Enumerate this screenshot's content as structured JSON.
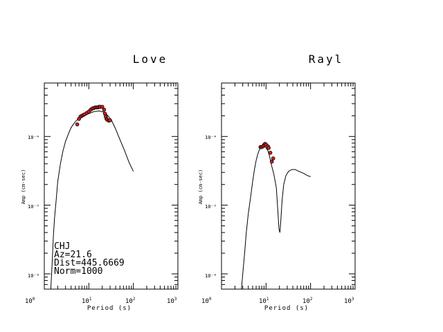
{
  "chart_data": [
    {
      "type": "line",
      "title": "Love",
      "xlabel": "Period (s)",
      "ylabel": "Amp (cm-sec)",
      "xscale": "log",
      "yscale": "log",
      "xlim": [
        1,
        1000
      ],
      "ylim": [
        6e-07,
        0.0006
      ],
      "x_ticks": [
        {
          "base": "10",
          "exp": "0"
        },
        {
          "base": "10",
          "exp": "1"
        },
        {
          "base": "10",
          "exp": "2"
        },
        {
          "base": "10",
          "exp": "3"
        }
      ],
      "y_ticks": [
        {
          "value": 1e-06,
          "label": "10⁻⁶"
        },
        {
          "value": 1e-05,
          "label": "10⁻⁵"
        },
        {
          "value": 0.0001,
          "label": "10⁻⁴"
        }
      ],
      "annotations": [
        "CHJ",
        "Az=21.6",
        "Dist=445.6669",
        "Norm=1000"
      ],
      "series": [
        {
          "kind": "line",
          "color": "#000000",
          "points": [
            [
              1.4,
              6e-07
            ],
            [
              1.5,
              1.4e-06
            ],
            [
              1.6,
              3.5e-06
            ],
            [
              1.7,
              6.5e-06
            ],
            [
              1.85,
              1.2e-05
            ],
            [
              2.0,
              2.2e-05
            ],
            [
              2.3,
              4e-05
            ],
            [
              2.6,
              6e-05
            ],
            [
              3.0,
              8.5e-05
            ],
            [
              3.5,
              0.00011
            ],
            [
              4.0,
              0.000135
            ],
            [
              5.0,
              0.000165
            ],
            [
              6.0,
              0.000185
            ],
            [
              8.0,
              0.0002
            ],
            [
              10.0,
              0.000215
            ],
            [
              13.0,
              0.00023
            ],
            [
              17.0,
              0.000235
            ],
            [
              22.0,
              0.000225
            ],
            [
              26.0,
              0.000205
            ],
            [
              32.0,
              0.000175
            ],
            [
              40.0,
              0.000128
            ],
            [
              50.0,
              9e-05
            ],
            [
              65.0,
              6e-05
            ],
            [
              80.0,
              4.2e-05
            ],
            [
              100.0,
              3.1e-05
            ]
          ]
        },
        {
          "kind": "scatter",
          "color": "#d02020",
          "points": [
            [
              5.5,
              0.00015
            ],
            [
              6.0,
              0.00018
            ],
            [
              6.5,
              0.000195
            ],
            [
              7.0,
              0.0002
            ],
            [
              7.5,
              0.000205
            ],
            [
              8.0,
              0.00021
            ],
            [
              9.0,
              0.00022
            ],
            [
              10.0,
              0.00023
            ],
            [
              11.0,
              0.000245
            ],
            [
              12.0,
              0.000255
            ],
            [
              13.0,
              0.00026
            ],
            [
              14.0,
              0.000265
            ],
            [
              15.0,
              0.000265
            ],
            [
              16.0,
              0.000265
            ],
            [
              17.0,
              0.00027
            ],
            [
              18.0,
              0.00027
            ],
            [
              20.0,
              0.00027
            ],
            [
              22.0,
              0.000245
            ],
            [
              23.0,
              0.000215
            ],
            [
              24.0,
              0.000195
            ],
            [
              25.0,
              0.00018
            ],
            [
              26.0,
              0.000175
            ],
            [
              28.0,
              0.00017
            ],
            [
              30.0,
              0.000172
            ]
          ]
        }
      ]
    },
    {
      "type": "line",
      "title": "Rayl",
      "xlabel": "Period (s)",
      "ylabel": "Amp (cm-sec)",
      "xscale": "log",
      "yscale": "log",
      "xlim": [
        1,
        1000
      ],
      "ylim": [
        6e-07,
        0.0006
      ],
      "x_ticks": [
        {
          "base": "10",
          "exp": "0"
        },
        {
          "base": "10",
          "exp": "1"
        },
        {
          "base": "10",
          "exp": "2"
        },
        {
          "base": "10",
          "exp": "3"
        }
      ],
      "y_ticks": [
        {
          "value": 1e-06,
          "label": "10⁻⁶"
        },
        {
          "value": 1e-05,
          "label": "10⁻⁵"
        },
        {
          "value": 0.0001,
          "label": "10⁻⁴"
        }
      ],
      "annotations": [],
      "series": [
        {
          "kind": "line",
          "color": "#000000",
          "points": [
            [
              2.8,
              6e-07
            ],
            [
              3.0,
              1e-06
            ],
            [
              3.3,
              2e-06
            ],
            [
              3.6,
              4e-06
            ],
            [
              4.0,
              7.5e-06
            ],
            [
              4.5,
              1.3e-05
            ],
            [
              5.0,
              2.2e-05
            ],
            [
              5.5,
              3.3e-05
            ],
            [
              6.0,
              4.5e-05
            ],
            [
              6.5,
              5.5e-05
            ],
            [
              7.0,
              6.3e-05
            ],
            [
              7.5,
              6.8e-05
            ],
            [
              8.0,
              7e-05
            ],
            [
              9.0,
              7.2e-05
            ],
            [
              10.0,
              6.8e-05
            ],
            [
              11.0,
              6.2e-05
            ],
            [
              12.0,
              5.2e-05
            ],
            [
              13.0,
              4e-05
            ],
            [
              15.0,
              2.8e-05
            ],
            [
              17.0,
              1.8e-05
            ],
            [
              18.5,
              8e-06
            ],
            [
              19.5,
              4.5e-06
            ],
            [
              20.5,
              4e-06
            ],
            [
              21.5,
              6e-06
            ],
            [
              23.0,
              1.2e-05
            ],
            [
              25.0,
              2e-05
            ],
            [
              28.0,
              2.7e-05
            ],
            [
              32.0,
              3.1e-05
            ],
            [
              38.0,
              3.3e-05
            ],
            [
              45.0,
              3.3e-05
            ],
            [
              55.0,
              3.1e-05
            ],
            [
              70.0,
              2.9e-05
            ],
            [
              85.0,
              2.7e-05
            ],
            [
              100.0,
              2.6e-05
            ]
          ]
        },
        {
          "kind": "scatter",
          "color": "#d02020",
          "points": [
            [
              7.5,
              7e-05
            ],
            [
              8.0,
              7e-05
            ],
            [
              8.5,
              7.2e-05
            ],
            [
              9.0,
              7.5e-05
            ],
            [
              9.5,
              7.8e-05
            ],
            [
              10.0,
              7.6e-05
            ],
            [
              11.0,
              7.2e-05
            ],
            [
              11.5,
              6.8e-05
            ],
            [
              12.5,
              5.8e-05
            ],
            [
              13.5,
              4.3e-05
            ],
            [
              14.5,
              4.8e-05
            ]
          ]
        }
      ]
    }
  ]
}
